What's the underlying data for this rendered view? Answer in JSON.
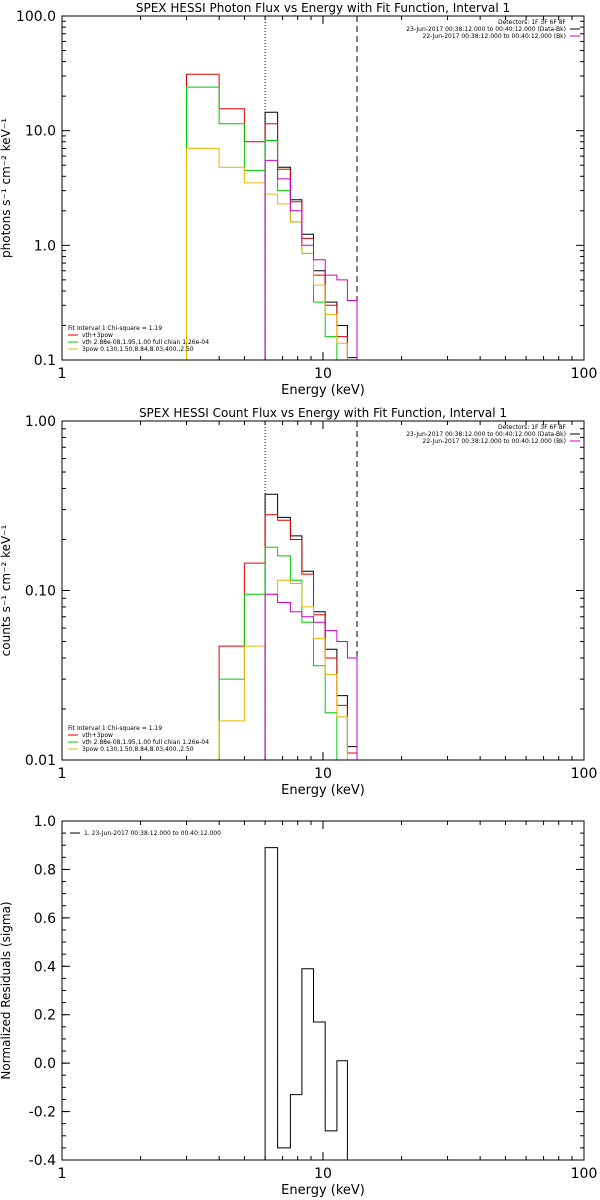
{
  "chart_data": [
    {
      "type": "line",
      "title": "SPEX HESSI Photon Flux vs Energy with Fit Function, Interval 1",
      "xlabel": "Energy (keV)",
      "ylabel": "photons s⁻¹ cm⁻² keV⁻¹",
      "xscale": "log",
      "yscale": "log",
      "xlim": [
        1,
        100
      ],
      "ylim": [
        0.1,
        100
      ],
      "x_ticks": [
        "1",
        "10",
        "100"
      ],
      "y_ticks": [
        {
          "value": 0.1,
          "label": "0.1"
        },
        {
          "value": 1,
          "label": "1.0"
        },
        {
          "value": 10,
          "label": "10.0"
        },
        {
          "value": 100,
          "label": "100.0"
        }
      ],
      "vlines": [
        {
          "x": 6.0,
          "style": "dotted",
          "color": "#000000"
        },
        {
          "x": 13.5,
          "style": "dashed",
          "color": "#000000"
        }
      ],
      "header_lines": [
        {
          "text": "Detectors: 1F 3F 6F 8F",
          "color": null
        },
        {
          "text": "23-Jun-2017 00:38:12.000 to 00:40:12.000 (Data-Bk)",
          "color": "#000000"
        },
        {
          "text": "22-Jun-2017 00:38:12.000 to 00:40:12.000 (Bk)",
          "color": "#cc00cc"
        }
      ],
      "legend_lines": [
        {
          "text": "Fit Interval  1    Chi-square = 1.19",
          "color": null
        },
        {
          "text": "vth+3pow",
          "color": "#dd0000"
        },
        {
          "text": "vth 2.88e-08,1.95,1.00  full chian 1.26e-04",
          "color": "#00cc00"
        },
        {
          "text": "3pow 0.130,1.50,8.84,8.03,400.,2.50",
          "color": "#e6b800"
        }
      ],
      "series": [
        {
          "name": "Data-Bk",
          "color": "#000000",
          "steps": [
            [
              6.0,
              6.7,
              14.5
            ],
            [
              6.7,
              7.5,
              4.8
            ],
            [
              7.5,
              8.3,
              2.5
            ],
            [
              8.3,
              9.2,
              1.25
            ],
            [
              9.2,
              10.2,
              0.6
            ],
            [
              10.2,
              11.3,
              0.32
            ],
            [
              11.3,
              12.4,
              0.2
            ],
            [
              12.4,
              13.5,
              0.105
            ]
          ]
        },
        {
          "name": "vth+3pow",
          "color": "#dd0000",
          "steps": [
            [
              3.0,
              4.0,
              31
            ],
            [
              4.0,
              5.0,
              15.5
            ],
            [
              5.0,
              6.0,
              8.0
            ],
            [
              6.0,
              6.7,
              11.5
            ],
            [
              6.7,
              7.5,
              4.6
            ],
            [
              7.5,
              8.3,
              2.4
            ],
            [
              8.3,
              9.2,
              1.15
            ],
            [
              9.2,
              10.2,
              0.55
            ],
            [
              10.2,
              11.3,
              0.3
            ],
            [
              11.3,
              12.4,
              0.16
            ],
            [
              12.4,
              13.5,
              0.1
            ]
          ]
        },
        {
          "name": "vth",
          "color": "#00cc00",
          "steps": [
            [
              3.0,
              4.0,
              24
            ],
            [
              4.0,
              5.0,
              11.5
            ],
            [
              5.0,
              6.0,
              4.5
            ],
            [
              6.0,
              6.7,
              8.2
            ],
            [
              6.7,
              7.5,
              3.0
            ],
            [
              7.5,
              8.3,
              1.6
            ],
            [
              8.3,
              9.2,
              0.85
            ],
            [
              9.2,
              10.2,
              0.32
            ],
            [
              10.2,
              11.3,
              0.16
            ],
            [
              11.3,
              12.4,
              0.1
            ]
          ]
        },
        {
          "name": "3pow",
          "color": "#e6b800",
          "steps": [
            [
              3.0,
              4.0,
              7.0
            ],
            [
              4.0,
              5.0,
              4.8
            ],
            [
              5.0,
              6.0,
              3.5
            ],
            [
              6.0,
              6.7,
              2.8
            ],
            [
              6.7,
              7.5,
              2.3
            ],
            [
              7.5,
              8.3,
              1.6
            ],
            [
              8.3,
              9.2,
              0.85
            ],
            [
              9.2,
              10.2,
              0.45
            ],
            [
              10.2,
              11.3,
              0.25
            ],
            [
              11.3,
              12.4,
              0.14
            ],
            [
              12.4,
              13.5,
              0.1
            ]
          ]
        },
        {
          "name": "Bk",
          "color": "#cc00cc",
          "steps": [
            [
              6.0,
              6.7,
              5.5
            ],
            [
              6.7,
              7.5,
              3.8
            ],
            [
              7.5,
              8.3,
              2.0
            ],
            [
              8.3,
              9.2,
              1.0
            ],
            [
              9.2,
              10.2,
              0.75
            ],
            [
              10.2,
              11.3,
              0.55
            ],
            [
              11.3,
              12.4,
              0.5
            ],
            [
              12.4,
              13.5,
              0.33
            ]
          ]
        }
      ]
    },
    {
      "type": "line",
      "title": "SPEX HESSI Count Flux vs Energy with Fit Function, Interval 1",
      "xlabel": "Energy (keV)",
      "ylabel": "counts s⁻¹ cm⁻² keV⁻¹",
      "xscale": "log",
      "yscale": "log",
      "xlim": [
        1,
        100
      ],
      "ylim": [
        0.01,
        1
      ],
      "x_ticks": [
        "1",
        "10",
        "100"
      ],
      "y_ticks": [
        {
          "value": 0.01,
          "label": "0.01"
        },
        {
          "value": 0.1,
          "label": "0.10"
        },
        {
          "value": 1,
          "label": "1.00"
        }
      ],
      "vlines": [
        {
          "x": 6.0,
          "style": "dotted",
          "color": "#000000"
        },
        {
          "x": 13.5,
          "style": "dashed",
          "color": "#000000"
        }
      ],
      "header_lines": [
        {
          "text": "Detectors: 1F 3F 6F 8F",
          "color": null
        },
        {
          "text": "23-Jun-2017 00:38:12.000 to 00:40:12.000 (Data-Bk)",
          "color": "#000000"
        },
        {
          "text": "22-Jun-2017 00:38:12.000 to 00:40:12.000 (Bk)",
          "color": "#cc00cc"
        }
      ],
      "legend_lines": [
        {
          "text": "Fit Interval  1    Chi-square = 1.19",
          "color": null
        },
        {
          "text": "vth+3pow",
          "color": "#dd0000"
        },
        {
          "text": "vth 2.88e-08,1.95,1.00  full chian 1.26e-04",
          "color": "#00cc00"
        },
        {
          "text": "3pow 0.130,1.50,8.84,8.03,400.,2.50",
          "color": "#e6b800"
        }
      ],
      "series": [
        {
          "name": "Data-Bk",
          "color": "#000000",
          "steps": [
            [
              6.0,
              6.7,
              0.37
            ],
            [
              6.7,
              7.5,
              0.27
            ],
            [
              7.5,
              8.3,
              0.21
            ],
            [
              8.3,
              9.2,
              0.13
            ],
            [
              9.2,
              10.2,
              0.075
            ],
            [
              10.2,
              11.3,
              0.045
            ],
            [
              11.3,
              12.4,
              0.024
            ],
            [
              12.4,
              13.5,
              0.012
            ]
          ]
        },
        {
          "name": "vth+3pow",
          "color": "#dd0000",
          "steps": [
            [
              4.0,
              5.0,
              0.047
            ],
            [
              5.0,
              6.0,
              0.145
            ],
            [
              6.0,
              6.7,
              0.28
            ],
            [
              6.7,
              7.5,
              0.26
            ],
            [
              7.5,
              8.3,
              0.2
            ],
            [
              8.3,
              9.2,
              0.125
            ],
            [
              9.2,
              10.2,
              0.072
            ],
            [
              10.2,
              11.3,
              0.04
            ],
            [
              11.3,
              12.4,
              0.021
            ],
            [
              12.4,
              13.5,
              0.011
            ]
          ]
        },
        {
          "name": "vth",
          "color": "#00cc00",
          "steps": [
            [
              4.0,
              5.0,
              0.03
            ],
            [
              5.0,
              6.0,
              0.095
            ],
            [
              6.0,
              6.7,
              0.18
            ],
            [
              6.7,
              7.5,
              0.16
            ],
            [
              7.5,
              8.3,
              0.115
            ],
            [
              8.3,
              9.2,
              0.065
            ],
            [
              9.2,
              10.2,
              0.036
            ],
            [
              10.2,
              11.3,
              0.019
            ],
            [
              11.3,
              12.4,
              0.01
            ]
          ]
        },
        {
          "name": "3pow",
          "color": "#e6b800",
          "steps": [
            [
              4.0,
              5.0,
              0.017
            ],
            [
              5.0,
              6.0,
              0.047
            ],
            [
              6.0,
              6.7,
              0.095
            ],
            [
              6.7,
              7.5,
              0.115
            ],
            [
              7.5,
              8.3,
              0.11
            ],
            [
              8.3,
              9.2,
              0.08
            ],
            [
              9.2,
              10.2,
              0.052
            ],
            [
              10.2,
              11.3,
              0.032
            ],
            [
              11.3,
              12.4,
              0.018
            ],
            [
              12.4,
              13.5,
              0.01
            ]
          ]
        },
        {
          "name": "Bk",
          "color": "#cc00cc",
          "steps": [
            [
              6.0,
              6.7,
              0.095
            ],
            [
              6.7,
              7.5,
              0.085
            ],
            [
              7.5,
              8.3,
              0.075
            ],
            [
              8.3,
              9.2,
              0.07
            ],
            [
              9.2,
              10.2,
              0.065
            ],
            [
              10.2,
              11.3,
              0.058
            ],
            [
              11.3,
              12.4,
              0.05
            ],
            [
              12.4,
              13.5,
              0.04
            ]
          ]
        }
      ]
    },
    {
      "type": "line",
      "title": "",
      "xlabel": "Energy (keV)",
      "ylabel": "Normalized Residuals (sigma)",
      "xscale": "log",
      "yscale": "linear",
      "xlim": [
        1,
        100
      ],
      "ylim": [
        -0.4,
        1.0
      ],
      "x_ticks": [
        "1",
        "10",
        "100"
      ],
      "y_ticks": [
        {
          "value": -0.4,
          "label": "-0.4"
        },
        {
          "value": -0.2,
          "label": "-0.2"
        },
        {
          "value": 0.0,
          "label": "0.0"
        },
        {
          "value": 0.2,
          "label": "0.2"
        },
        {
          "value": 0.4,
          "label": "0.4"
        },
        {
          "value": 0.6,
          "label": "0.6"
        },
        {
          "value": 0.8,
          "label": "0.8"
        },
        {
          "value": 1.0,
          "label": "1.0"
        }
      ],
      "vlines": [],
      "header_lines": [],
      "legend_lines": [
        {
          "text": "1. 23-Jun-2017 00:38:12.000 to 00:40:12.000",
          "color": "#000000"
        }
      ],
      "series": [
        {
          "name": "",
          "color": "#000000",
          "steps": [
            [
              6.0,
              6.7,
              0.89
            ],
            [
              6.7,
              7.5,
              -0.35
            ],
            [
              7.5,
              8.3,
              -0.13
            ],
            [
              8.3,
              9.2,
              0.39
            ],
            [
              9.2,
              10.2,
              0.17
            ],
            [
              10.2,
              11.3,
              -0.28
            ],
            [
              11.3,
              12.4,
              0.01
            ]
          ]
        }
      ]
    }
  ]
}
